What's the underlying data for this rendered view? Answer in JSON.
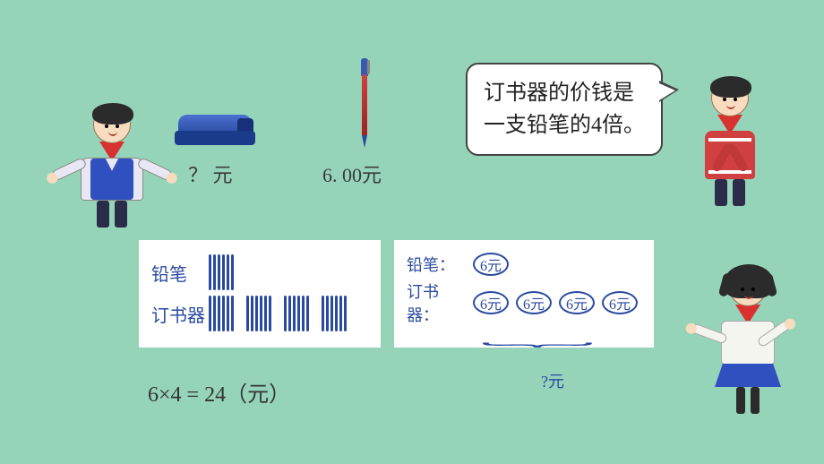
{
  "colors": {
    "background": "#96d4b9",
    "panel_bg": "#ffffff",
    "text": "#333333",
    "hand_ink": "#2a4aa0",
    "bubble_border": "#444444",
    "scarf": "#d93030",
    "vest": "#3050c0",
    "stapler_primary": "#2a4aa0",
    "pen_body": "#d04040"
  },
  "items": {
    "stapler": {
      "label": "？ 元"
    },
    "pen": {
      "label": "6. 00元",
      "price_value": 6.0
    }
  },
  "speech": {
    "text": "订书器的价钱是一支铅笔的4倍。",
    "multiplier": 4
  },
  "tally_panel": {
    "rows": [
      {
        "label": "铅笔",
        "groups": 1,
        "sticks_per_group": 6
      },
      {
        "label": "订书器",
        "groups": 4,
        "sticks_per_group": 6
      }
    ],
    "stick_color": "#2a4aa0"
  },
  "circle_panel": {
    "rows": [
      {
        "label": "铅笔：",
        "circles": [
          "6元"
        ]
      },
      {
        "label": "订书器：",
        "circles": [
          "6元",
          "6元",
          "6元",
          "6元"
        ]
      }
    ],
    "brace_label": "?元"
  },
  "equation": {
    "text": "6×4 = 24（元）",
    "a": 6,
    "op": "×",
    "b": 4,
    "result": 24,
    "unit": "元"
  },
  "typography": {
    "price_fontsize_pt": 16,
    "bubble_fontsize_pt": 18,
    "hand_fontsize_pt": 15,
    "equation_fontsize_pt": 18
  }
}
